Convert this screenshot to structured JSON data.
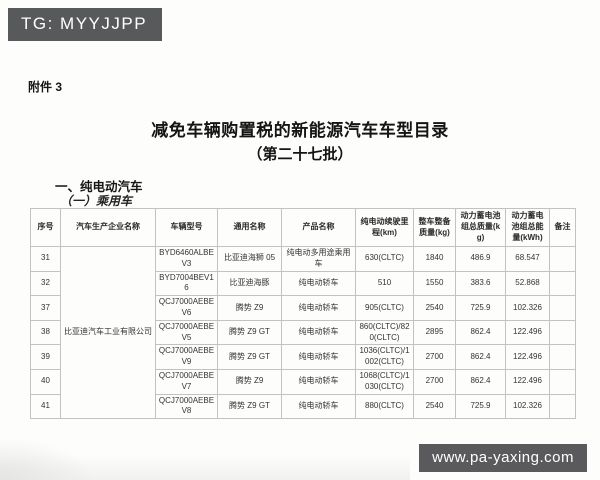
{
  "watermarks": {
    "top": "TG: MYYJJPP",
    "bottom": "www.pa-yaxing.com"
  },
  "document": {
    "attachment": "附件 3",
    "title": "减免车辆购置税的新能源汽车车型目录",
    "subtitle": "（第二十七批）",
    "section": "一、纯电动汽车",
    "subsection": "（一）乘用车"
  },
  "table": {
    "headers": [
      "序号",
      "汽车生产企业名称",
      "车辆型号",
      "通用名称",
      "产品名称",
      "纯电动续驶里程(km)",
      "整车整备质量(kg)",
      "动力蓄电池组总质量(kg)",
      "动力蓄电池组总能量(kWh)",
      "备注"
    ],
    "manufacturer": "比亚迪汽车工业有限公司",
    "rows": [
      {
        "no": "31",
        "model": "BYD6460ALBEV3",
        "common_name": "比亚迪海狮 05",
        "product_name": "纯电动多用途乘用车",
        "range_km": "630(CLTC)",
        "curb_mass_kg": "1840",
        "battery_mass_kg": "486.9",
        "battery_energy_kwh": "68.547",
        "remark": ""
      },
      {
        "no": "32",
        "model": "BYD7004BEV16",
        "common_name": "比亚迪海豚",
        "product_name": "纯电动轿车",
        "range_km": "510",
        "curb_mass_kg": "1550",
        "battery_mass_kg": "383.6",
        "battery_energy_kwh": "52.868",
        "remark": ""
      },
      {
        "no": "37",
        "model": "QCJ7000AEBEV6",
        "common_name": "腾势 Z9",
        "product_name": "纯电动轿车",
        "range_km": "905(CLTC)",
        "curb_mass_kg": "2540",
        "battery_mass_kg": "725.9",
        "battery_energy_kwh": "102.326",
        "remark": ""
      },
      {
        "no": "38",
        "model": "QCJ7000AEBEV5",
        "common_name": "腾势 Z9 GT",
        "product_name": "纯电动轿车",
        "range_km": "860(CLTC)/820(CLTC)",
        "curb_mass_kg": "2895",
        "battery_mass_kg": "862.4",
        "battery_energy_kwh": "122.496",
        "remark": ""
      },
      {
        "no": "39",
        "model": "QCJ7000AEBEV9",
        "common_name": "腾势 Z9 GT",
        "product_name": "纯电动轿车",
        "range_km": "1036(CLTC)/1002(CLTC)",
        "curb_mass_kg": "2700",
        "battery_mass_kg": "862.4",
        "battery_energy_kwh": "122.496",
        "remark": ""
      },
      {
        "no": "40",
        "model": "QCJ7000AEBEV7",
        "common_name": "腾势 Z9",
        "product_name": "纯电动轿车",
        "range_km": "1068(CLTC)/1030(CLTC)",
        "curb_mass_kg": "2700",
        "battery_mass_kg": "862.4",
        "battery_energy_kwh": "122.496",
        "remark": ""
      },
      {
        "no": "41",
        "model": "QCJ7000AEBEV8",
        "common_name": "腾势 Z9 GT",
        "product_name": "纯电动轿车",
        "range_km": "880(CLTC)",
        "curb_mass_kg": "2540",
        "battery_mass_kg": "725.9",
        "battery_energy_kwh": "102.326",
        "remark": ""
      }
    ]
  }
}
